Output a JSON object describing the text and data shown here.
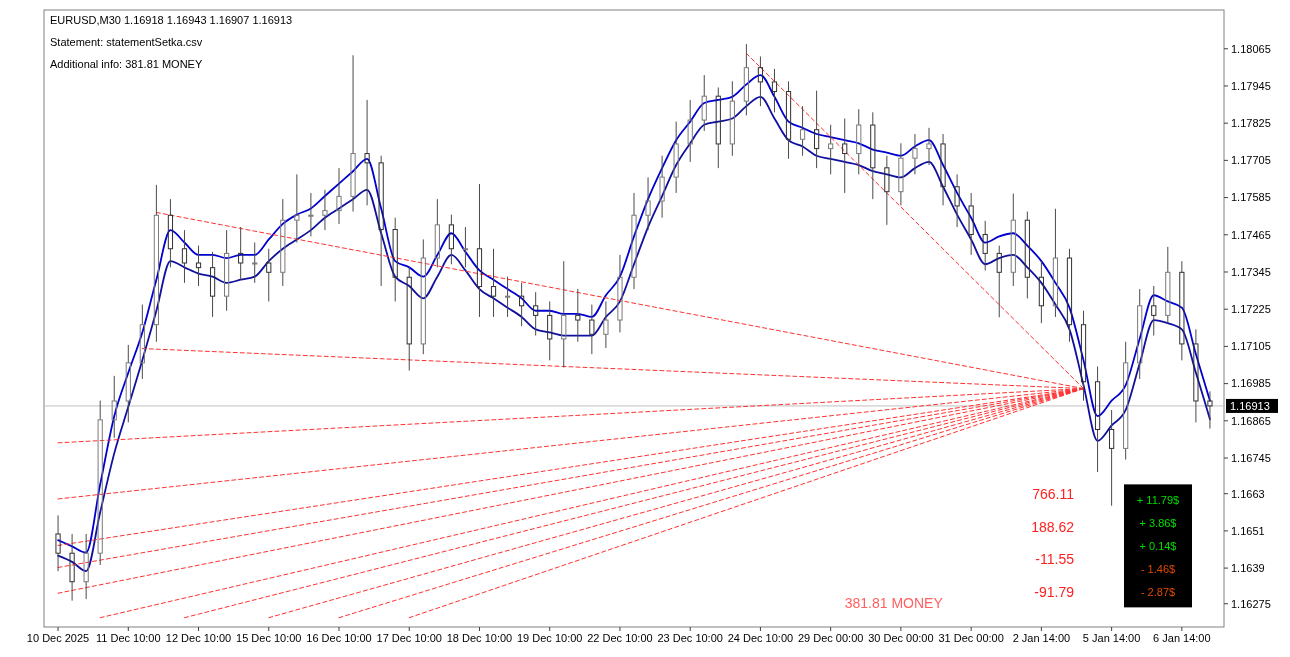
{
  "chart_data": {
    "type": "candlestick",
    "title": "EURUSD,M30  1.16918 1.16943 1.16907 1.16913",
    "annotations": [
      "Statement: statementSetka.csv",
      "Additional info: 381.81 MONEY",
      "766.11",
      "188.62",
      "-11.55",
      "-91.79",
      "381.81 MONEY",
      "+ 11.79$",
      "+ 3.86$",
      "+ 0.14$",
      "- 1.46$",
      "- 2.87$"
    ],
    "categories": [
      "10 Dec 2025",
      null,
      null,
      null,
      null,
      "11 Dec 10:00",
      null,
      null,
      null,
      null,
      "12 Dec 10:00",
      null,
      null,
      null,
      null,
      "15 Dec 10:00",
      null,
      null,
      null,
      null,
      "16 Dec 10:00",
      null,
      null,
      null,
      null,
      "17 Dec 10:00",
      null,
      null,
      null,
      null,
      "18 Dec 10:00",
      null,
      null,
      null,
      null,
      "19 Dec 10:00",
      null,
      null,
      null,
      null,
      "22 Dec 10:00",
      null,
      null,
      null,
      null,
      "23 Dec 10:00",
      null,
      null,
      null,
      null,
      "24 Dec 10:00",
      null,
      null,
      null,
      null,
      "29 Dec 00:00",
      null,
      null,
      null,
      null,
      "30 Dec 00:00",
      null,
      null,
      null,
      null,
      "31 Dec 00:00",
      null,
      null,
      null,
      null,
      "2 Jan 14:00",
      null,
      null,
      null,
      null,
      "5 Jan 14:00",
      null,
      null,
      null,
      null,
      "6 Jan 14:00",
      null,
      null
    ],
    "ohlc": [
      [
        1.165,
        1.1656,
        1.1638,
        1.16438
      ],
      [
        1.16438,
        1.165,
        1.16285,
        1.16346
      ],
      [
        1.16346,
        1.165,
        1.1629,
        1.16438
      ],
      [
        1.16438,
        1.1693,
        1.164,
        1.16868
      ],
      [
        1.16868,
        1.1701,
        1.1681,
        1.16929
      ],
      [
        1.16929,
        1.1711,
        1.1686,
        1.17052
      ],
      [
        1.17052,
        1.1724,
        1.17,
        1.17175
      ],
      [
        1.17175,
        1.17626,
        1.1712,
        1.17528
      ],
      [
        1.17528,
        1.1758,
        1.1736,
        1.1742
      ],
      [
        1.1742,
        1.1748,
        1.1731,
        1.17374
      ],
      [
        1.17374,
        1.1743,
        1.173,
        1.17359
      ],
      [
        1.17359,
        1.1741,
        1.172,
        1.17267
      ],
      [
        1.17267,
        1.1748,
        1.1722,
        1.17405
      ],
      [
        1.17405,
        1.1749,
        1.1732,
        1.17374
      ],
      [
        1.17374,
        1.1744,
        1.1731,
        1.17374
      ],
      [
        1.17374,
        1.1742,
        1.1725,
        1.17344
      ],
      [
        1.17344,
        1.1758,
        1.173,
        1.17512
      ],
      [
        1.17512,
        1.1766,
        1.1744,
        1.17528
      ],
      [
        1.17528,
        1.176,
        1.1746,
        1.17528
      ],
      [
        1.17528,
        1.1761,
        1.1748,
        1.17543
      ],
      [
        1.17543,
        1.1768,
        1.175,
        1.17589
      ],
      [
        1.17589,
        1.18044,
        1.1754,
        1.17727
      ],
      [
        1.17727,
        1.179,
        1.1756,
        1.17697
      ],
      [
        1.17697,
        1.1772,
        1.173,
        1.17482
      ],
      [
        1.17482,
        1.1752,
        1.1725,
        1.17328
      ],
      [
        1.17328,
        1.1736,
        1.17027,
        1.17113
      ],
      [
        1.17113,
        1.1745,
        1.1708,
        1.1739
      ],
      [
        1.1739,
        1.1758,
        1.1736,
        1.17497
      ],
      [
        1.17497,
        1.1753,
        1.1737,
        1.1742
      ],
      [
        1.1742,
        1.1749,
        1.1736,
        1.1742
      ],
      [
        1.1742,
        1.17629,
        1.172,
        1.17298
      ],
      [
        1.17298,
        1.1742,
        1.172,
        1.17267
      ],
      [
        1.17267,
        1.1733,
        1.172,
        1.17267
      ],
      [
        1.17267,
        1.1731,
        1.1717,
        1.17236
      ],
      [
        1.17236,
        1.1728,
        1.1714,
        1.17205
      ],
      [
        1.17205,
        1.1725,
        1.1706,
        1.17129
      ],
      [
        1.17129,
        1.1738,
        1.17037,
        1.17205
      ],
      [
        1.17205,
        1.1729,
        1.1712,
        1.1719
      ],
      [
        1.1719,
        1.1724,
        1.1708,
        1.17144
      ],
      [
        1.17144,
        1.1725,
        1.171,
        1.1719
      ],
      [
        1.1719,
        1.174,
        1.1715,
        1.17328
      ],
      [
        1.17328,
        1.176,
        1.1729,
        1.17528
      ],
      [
        1.17528,
        1.1765,
        1.1748,
        1.17574
      ],
      [
        1.17574,
        1.1772,
        1.1752,
        1.17651
      ],
      [
        1.17651,
        1.1783,
        1.176,
        1.17758
      ],
      [
        1.17758,
        1.179,
        1.177,
        1.17835
      ],
      [
        1.17835,
        1.1798,
        1.178,
        1.17912
      ],
      [
        1.17912,
        1.1794,
        1.1768,
        1.17758
      ],
      [
        1.17758,
        1.1796,
        1.1772,
        1.17896
      ],
      [
        1.17896,
        1.1808,
        1.1785,
        1.18004
      ],
      [
        1.18004,
        1.1804,
        1.1788,
        1.17958
      ],
      [
        1.17958,
        1.18,
        1.1786,
        1.17927
      ],
      [
        1.17927,
        1.1796,
        1.1771,
        1.17773
      ],
      [
        1.17773,
        1.1788,
        1.1772,
        1.17804
      ],
      [
        1.17804,
        1.1793,
        1.1768,
        1.17743
      ],
      [
        1.17743,
        1.1782,
        1.1766,
        1.17758
      ],
      [
        1.17758,
        1.1784,
        1.176,
        1.17727
      ],
      [
        1.17727,
        1.1787,
        1.1766,
        1.17819
      ],
      [
        1.17819,
        1.1786,
        1.1758,
        1.17681
      ],
      [
        1.17681,
        1.1772,
        1.17497,
        1.17604
      ],
      [
        1.17604,
        1.1776,
        1.1756,
        1.17712
      ],
      [
        1.17712,
        1.1779,
        1.1766,
        1.17743
      ],
      [
        1.17743,
        1.1781,
        1.1769,
        1.17758
      ],
      [
        1.17758,
        1.1779,
        1.1756,
        1.1762
      ],
      [
        1.1762,
        1.1766,
        1.1749,
        1.17558
      ],
      [
        1.17558,
        1.176,
        1.174,
        1.17466
      ],
      [
        1.17466,
        1.1751,
        1.1735,
        1.17405
      ],
      [
        1.17405,
        1.1743,
        1.17199,
        1.17344
      ],
      [
        1.17344,
        1.17598,
        1.173,
        1.17512
      ],
      [
        1.17512,
        1.1754,
        1.1726,
        1.17328
      ],
      [
        1.17328,
        1.1738,
        1.1718,
        1.17236
      ],
      [
        1.17236,
        1.17549,
        1.172,
        1.1739
      ],
      [
        1.1739,
        1.1742,
        1.1712,
        1.17175
      ],
      [
        1.17175,
        1.1722,
        1.1693,
        1.16991
      ],
      [
        1.16991,
        1.1704,
        1.167,
        1.16837
      ],
      [
        1.16837,
        1.169,
        1.16591,
        1.16776
      ],
      [
        1.16776,
        1.1712,
        1.1674,
        1.17052
      ],
      [
        1.17052,
        1.1729,
        1.17,
        1.17236
      ],
      [
        1.17236,
        1.173,
        1.1714,
        1.17205
      ],
      [
        1.17205,
        1.17426,
        1.1718,
        1.17344
      ],
      [
        1.17344,
        1.1738,
        1.1706,
        1.17113
      ],
      [
        1.17113,
        1.1716,
        1.1686,
        1.16929
      ],
      [
        1.16929,
        1.1696,
        1.1684,
        1.16913
      ]
    ],
    "series": [
      {
        "type": "line",
        "color": "#0000d0",
        "values": [
          1.1648,
          1.1646,
          1.1644,
          1.1666,
          1.1688,
          1.1702,
          1.1715,
          1.1732,
          1.1748,
          1.1744,
          1.174,
          1.174,
          1.1739,
          1.174,
          1.174,
          1.1745,
          1.175,
          1.1753,
          1.1755,
          1.1759,
          1.1763,
          1.1767,
          1.1771,
          1.1755,
          1.1738,
          1.1736,
          1.1733,
          1.174,
          1.1747,
          1.1741,
          1.1735,
          1.1732,
          1.1729,
          1.1726,
          1.1722,
          1.1722,
          1.1721,
          1.1721,
          1.172,
          1.1727,
          1.1733,
          1.1746,
          1.1758,
          1.1768,
          1.1777,
          1.1783,
          1.1789,
          1.179,
          1.1791,
          1.1795,
          1.1798,
          1.1791,
          1.1783,
          1.1781,
          1.1779,
          1.1778,
          1.1777,
          1.1776,
          1.1774,
          1.1773,
          1.1772,
          1.1775,
          1.1777,
          1.1769,
          1.176,
          1.1752,
          1.1744,
          1.1746,
          1.1747,
          1.1743,
          1.1738,
          1.1731,
          1.1723,
          1.1706,
          1.1688,
          1.1693,
          1.1698,
          1.1713,
          1.1727,
          1.1725,
          1.1723,
          1.1708,
          1.1693
        ]
      },
      {
        "type": "line",
        "color": "#1010a0",
        "values": [
          1.1643,
          1.1641,
          1.1638,
          1.1657,
          1.1676,
          1.1691,
          1.1706,
          1.1722,
          1.1738,
          1.1736,
          1.1734,
          1.1733,
          1.1731,
          1.1732,
          1.1733,
          1.1738,
          1.1742,
          1.1745,
          1.1748,
          1.1752,
          1.1755,
          1.1758,
          1.1761,
          1.1747,
          1.1733,
          1.173,
          1.1726,
          1.1733,
          1.174,
          1.1735,
          1.1729,
          1.1726,
          1.1723,
          1.172,
          1.1716,
          1.1715,
          1.1714,
          1.1714,
          1.1714,
          1.172,
          1.1725,
          1.1737,
          1.1749,
          1.1759,
          1.1769,
          1.1776,
          1.1782,
          1.1783,
          1.1784,
          1.1788,
          1.1791,
          1.1784,
          1.1777,
          1.1775,
          1.1772,
          1.1771,
          1.177,
          1.1769,
          1.1767,
          1.1766,
          1.1765,
          1.1768,
          1.177,
          1.1762,
          1.1753,
          1.1745,
          1.1737,
          1.1739,
          1.174,
          1.1736,
          1.1731,
          1.1724,
          1.1716,
          1.1698,
          1.168,
          1.1685,
          1.169,
          1.1705,
          1.1719,
          1.1718,
          1.1716,
          1.1702,
          1.1687
        ]
      },
      {
        "type": "line",
        "color": "#ff3030",
        "line_style": "dashed",
        "values": [
          null,
          null,
          null,
          null,
          null,
          null,
          null,
          1.17537,
          null,
          null,
          null,
          null,
          null,
          null,
          null,
          null,
          null,
          null,
          null,
          null,
          null,
          null,
          null,
          null,
          null,
          null,
          null,
          null,
          null,
          null,
          null,
          null,
          null,
          null,
          null,
          null,
          null,
          null,
          null,
          null,
          null,
          null,
          null,
          null,
          null,
          null,
          null,
          null,
          null,
          null,
          null,
          null,
          null,
          null,
          null,
          null,
          null,
          null,
          null,
          null,
          null,
          null,
          null,
          null,
          null,
          null,
          null,
          null,
          null,
          null,
          null,
          null,
          null,
          1.16969,
          null,
          null,
          null,
          null,
          null,
          null,
          null,
          null,
          null
        ]
      },
      {
        "type": "line",
        "color": "#ff3030",
        "line_style": "dashed",
        "values": [
          null,
          null,
          null,
          null,
          null,
          null,
          1.17098,
          null,
          null,
          null,
          null,
          null,
          null,
          null,
          null,
          null,
          null,
          null,
          null,
          null,
          null,
          null,
          null,
          null,
          null,
          null,
          null,
          null,
          null,
          null,
          null,
          null,
          null,
          null,
          null,
          null,
          null,
          null,
          null,
          null,
          null,
          null,
          null,
          null,
          null,
          null,
          null,
          null,
          null,
          null,
          null,
          null,
          null,
          null,
          null,
          null,
          null,
          null,
          null,
          null,
          null,
          null,
          null,
          null,
          null,
          null,
          null,
          null,
          null,
          null,
          null,
          null,
          null,
          1.16969,
          null,
          null,
          null,
          null,
          null,
          null,
          null,
          null,
          null
        ]
      },
      {
        "type": "line",
        "color": "#ff3030",
        "line_style": "dashed",
        "values": [
          null,
          null,
          null,
          null,
          null,
          null,
          null,
          null,
          null,
          null,
          null,
          null,
          null,
          null,
          null,
          null,
          null,
          null,
          null,
          null,
          null,
          null,
          null,
          null,
          null,
          null,
          null,
          null,
          null,
          null,
          null,
          null,
          null,
          null,
          null,
          null,
          null,
          null,
          null,
          null,
          null,
          null,
          null,
          null,
          null,
          null,
          null,
          null,
          null,
          1.1805,
          null,
          null,
          null,
          null,
          null,
          null,
          null,
          null,
          null,
          null,
          null,
          null,
          null,
          null,
          null,
          null,
          null,
          null,
          null,
          null,
          null,
          null,
          null,
          1.16969,
          null,
          null,
          null,
          null,
          null,
          null,
          null,
          null,
          null
        ]
      },
      {
        "type": "line",
        "color": "#ff3030",
        "line_style": "dashed",
        "values": [
          1.16794,
          null,
          null,
          null,
          null,
          null,
          null,
          null,
          null,
          null,
          null,
          null,
          null,
          null,
          null,
          null,
          null,
          null,
          null,
          null,
          null,
          null,
          null,
          null,
          null,
          null,
          null,
          null,
          null,
          null,
          null,
          null,
          null,
          null,
          null,
          null,
          null,
          null,
          null,
          null,
          null,
          null,
          null,
          null,
          null,
          null,
          null,
          null,
          null,
          null,
          null,
          null,
          null,
          null,
          null,
          null,
          null,
          null,
          null,
          null,
          null,
          null,
          null,
          null,
          null,
          null,
          null,
          null,
          null,
          null,
          null,
          null,
          null,
          1.16969,
          null,
          null,
          null,
          null,
          null,
          null,
          null,
          null,
          null
        ]
      },
      {
        "type": "line",
        "color": "#ff3030",
        "line_style": "dashed",
        "values": [
          1.16613,
          null,
          null,
          null,
          null,
          null,
          null,
          null,
          null,
          null,
          null,
          null,
          null,
          null,
          null,
          null,
          null,
          null,
          null,
          null,
          null,
          null,
          null,
          null,
          null,
          null,
          null,
          null,
          null,
          null,
          null,
          null,
          null,
          null,
          null,
          null,
          null,
          null,
          null,
          null,
          null,
          null,
          null,
          null,
          null,
          null,
          null,
          null,
          null,
          null,
          null,
          null,
          null,
          null,
          null,
          null,
          null,
          null,
          null,
          null,
          null,
          null,
          null,
          null,
          null,
          null,
          null,
          null,
          null,
          null,
          null,
          null,
          null,
          1.16969,
          null,
          null,
          null,
          null,
          null,
          null,
          null,
          null,
          null
        ]
      },
      {
        "type": "line",
        "color": "#ff3030",
        "line_style": "dashed",
        "values": [
          1.16463,
          null,
          null,
          null,
          null,
          null,
          null,
          null,
          null,
          null,
          null,
          null,
          null,
          null,
          null,
          null,
          null,
          null,
          null,
          null,
          null,
          null,
          null,
          null,
          null,
          null,
          null,
          null,
          null,
          null,
          null,
          null,
          null,
          null,
          null,
          null,
          null,
          null,
          null,
          null,
          null,
          null,
          null,
          null,
          null,
          null,
          null,
          null,
          null,
          null,
          null,
          null,
          null,
          null,
          null,
          null,
          null,
          null,
          null,
          null,
          null,
          null,
          null,
          null,
          null,
          null,
          null,
          null,
          null,
          null,
          null,
          null,
          null,
          1.16969,
          null,
          null,
          null,
          null,
          null,
          null,
          null,
          null,
          null
        ]
      },
      {
        "type": "line",
        "color": "#ff3030",
        "line_style": "dashed",
        "values": [
          1.16392,
          null,
          null,
          null,
          null,
          null,
          null,
          null,
          null,
          null,
          null,
          null,
          null,
          null,
          null,
          null,
          null,
          null,
          null,
          null,
          null,
          null,
          null,
          null,
          null,
          null,
          null,
          null,
          null,
          null,
          null,
          null,
          null,
          null,
          null,
          null,
          null,
          null,
          null,
          null,
          null,
          null,
          null,
          null,
          null,
          null,
          null,
          null,
          null,
          null,
          null,
          null,
          null,
          null,
          null,
          null,
          null,
          null,
          null,
          null,
          null,
          null,
          null,
          null,
          null,
          null,
          null,
          null,
          null,
          null,
          null,
          null,
          null,
          1.16969,
          null,
          null,
          null,
          null,
          null,
          null,
          null,
          null,
          null
        ]
      },
      {
        "type": "line",
        "color": "#ff3030",
        "line_style": "dashed",
        "values": [
          1.16309,
          null,
          null,
          null,
          null,
          null,
          null,
          null,
          null,
          null,
          null,
          null,
          null,
          null,
          null,
          null,
          null,
          null,
          null,
          null,
          null,
          null,
          null,
          null,
          null,
          null,
          null,
          null,
          null,
          null,
          null,
          null,
          null,
          null,
          null,
          null,
          null,
          null,
          null,
          null,
          null,
          null,
          null,
          null,
          null,
          null,
          null,
          null,
          null,
          null,
          null,
          null,
          null,
          null,
          null,
          null,
          null,
          null,
          null,
          null,
          null,
          null,
          null,
          null,
          null,
          null,
          null,
          null,
          null,
          null,
          null,
          null,
          null,
          1.16969,
          null,
          null,
          null,
          null,
          null,
          null,
          null,
          null,
          null
        ]
      },
      {
        "type": "line",
        "color": "#ff3030",
        "line_style": "dashed",
        "values": [
          null,
          null,
          null,
          1.1623,
          null,
          null,
          null,
          null,
          null,
          null,
          null,
          null,
          null,
          null,
          null,
          null,
          null,
          null,
          null,
          null,
          null,
          null,
          null,
          null,
          null,
          null,
          null,
          null,
          null,
          null,
          null,
          null,
          null,
          null,
          null,
          null,
          null,
          null,
          null,
          null,
          null,
          null,
          null,
          null,
          null,
          null,
          null,
          null,
          null,
          null,
          null,
          null,
          null,
          null,
          null,
          null,
          null,
          null,
          null,
          null,
          null,
          null,
          null,
          null,
          null,
          null,
          null,
          null,
          null,
          null,
          null,
          null,
          null,
          1.16969,
          null,
          null,
          null,
          null,
          null,
          null,
          null,
          null,
          null
        ]
      },
      {
        "type": "line",
        "color": "#ff3030",
        "line_style": "dashed",
        "values": [
          null,
          null,
          null,
          null,
          null,
          null,
          null,
          null,
          null,
          1.1623,
          null,
          null,
          null,
          null,
          null,
          null,
          null,
          null,
          null,
          null,
          null,
          null,
          null,
          null,
          null,
          null,
          null,
          null,
          null,
          null,
          null,
          null,
          null,
          null,
          null,
          null,
          null,
          null,
          null,
          null,
          null,
          null,
          null,
          null,
          null,
          null,
          null,
          null,
          null,
          null,
          null,
          null,
          null,
          null,
          null,
          null,
          null,
          null,
          null,
          null,
          null,
          null,
          null,
          null,
          null,
          null,
          null,
          null,
          null,
          null,
          null,
          null,
          null,
          1.16969,
          null,
          null,
          null,
          null,
          null,
          null,
          null,
          null,
          null
        ]
      },
      {
        "type": "line",
        "color": "#ff3030",
        "line_style": "dashed",
        "values": [
          null,
          null,
          null,
          null,
          null,
          null,
          null,
          null,
          null,
          null,
          null,
          null,
          null,
          null,
          null,
          1.1623,
          null,
          null,
          null,
          null,
          null,
          null,
          null,
          null,
          null,
          null,
          null,
          null,
          null,
          null,
          null,
          null,
          null,
          null,
          null,
          null,
          null,
          null,
          null,
          null,
          null,
          null,
          null,
          null,
          null,
          null,
          null,
          null,
          null,
          null,
          null,
          null,
          null,
          null,
          null,
          null,
          null,
          null,
          null,
          null,
          null,
          null,
          null,
          null,
          null,
          null,
          null,
          null,
          null,
          null,
          null,
          null,
          null,
          1.16969,
          null,
          null,
          null,
          null,
          null,
          null,
          null,
          null,
          null
        ]
      },
      {
        "type": "line",
        "color": "#ff3030",
        "line_style": "dashed",
        "values": [
          null,
          null,
          null,
          null,
          null,
          null,
          null,
          null,
          null,
          null,
          null,
          null,
          null,
          null,
          null,
          null,
          null,
          null,
          null,
          null,
          1.1623,
          null,
          null,
          null,
          null,
          null,
          null,
          null,
          null,
          null,
          null,
          null,
          null,
          null,
          null,
          null,
          null,
          null,
          null,
          null,
          null,
          null,
          null,
          null,
          null,
          null,
          null,
          null,
          null,
          null,
          null,
          null,
          null,
          null,
          null,
          null,
          null,
          null,
          null,
          null,
          null,
          null,
          null,
          null,
          null,
          null,
          null,
          null,
          null,
          null,
          null,
          null,
          null,
          1.16969,
          null,
          null,
          null,
          null,
          null,
          null,
          null,
          null,
          null
        ]
      },
      {
        "type": "line",
        "color": "#ff3030",
        "line_style": "dashed",
        "values": [
          null,
          null,
          null,
          null,
          null,
          null,
          null,
          null,
          null,
          null,
          null,
          null,
          null,
          null,
          null,
          null,
          null,
          null,
          null,
          null,
          null,
          null,
          null,
          null,
          null,
          1.1623,
          null,
          null,
          null,
          null,
          null,
          null,
          null,
          null,
          null,
          null,
          null,
          null,
          null,
          null,
          null,
          null,
          null,
          null,
          null,
          null,
          null,
          null,
          null,
          null,
          null,
          null,
          null,
          null,
          null,
          null,
          null,
          null,
          null,
          null,
          null,
          null,
          null,
          null,
          null,
          null,
          null,
          null,
          null,
          null,
          null,
          null,
          null,
          1.16969,
          null,
          null,
          null,
          null,
          null,
          null,
          null,
          null,
          null
        ]
      }
    ],
    "ref_lines": [
      {
        "axis": "y",
        "value": 1.16913,
        "label": "1.16913",
        "color": "#c0c0c0"
      }
    ],
    "ylim": [
      1.162,
      1.1819
    ],
    "yticks": [
      1.16275,
      1.1639,
      1.1651,
      1.1663,
      1.16745,
      1.16865,
      1.16985,
      1.17105,
      1.17225,
      1.17345,
      1.17465,
      1.17585,
      1.17705,
      1.17825,
      1.17945,
      1.18065
    ],
    "grid": false,
    "marker": "none",
    "line_style": "solid"
  }
}
